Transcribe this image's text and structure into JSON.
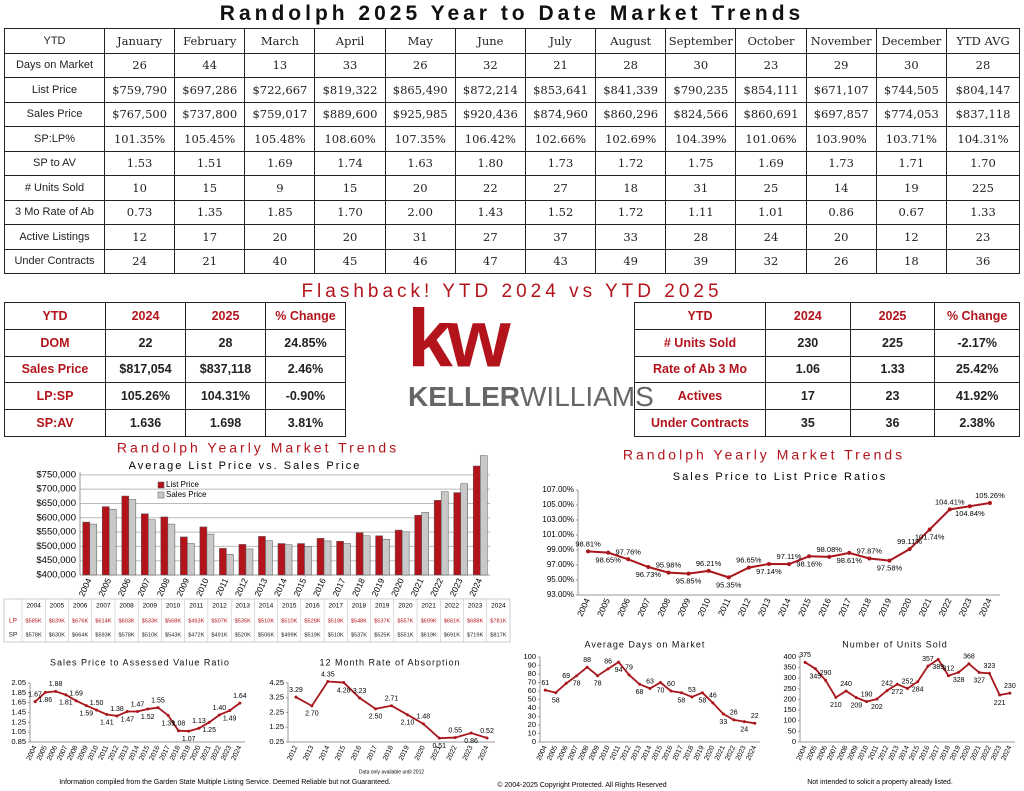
{
  "title": "Randolph 2025 Year to Date Market Trends",
  "table": {
    "header": [
      "YTD",
      "January",
      "February",
      "March",
      "April",
      "May",
      "June",
      "July",
      "August",
      "September",
      "October",
      "November",
      "December",
      "YTD AVG"
    ],
    "rows": [
      [
        "Days on Market",
        "26",
        "44",
        "13",
        "33",
        "26",
        "32",
        "21",
        "28",
        "30",
        "23",
        "29",
        "30",
        "28"
      ],
      [
        "List Price",
        "$759,790",
        "$697,286",
        "$722,667",
        "$819,322",
        "$865,490",
        "$872,214",
        "$853,641",
        "$841,339",
        "$790,235",
        "$854,111",
        "$671,107",
        "$744,505",
        "$804,147"
      ],
      [
        "Sales Price",
        "$767,500",
        "$737,800",
        "$759,017",
        "$889,600",
        "$925,985",
        "$920,436",
        "$874,960",
        "$860,296",
        "$824,566",
        "$860,691",
        "$697,857",
        "$774,053",
        "$837,118"
      ],
      [
        "SP:LP%",
        "101.35%",
        "105.45%",
        "105.48%",
        "108.60%",
        "107.35%",
        "106.42%",
        "102.66%",
        "102.69%",
        "104.39%",
        "101.06%",
        "103.90%",
        "103.71%",
        "104.31%"
      ],
      [
        "SP to AV",
        "1.53",
        "1.51",
        "1.69",
        "1.74",
        "1.63",
        "1.80",
        "1.73",
        "1.72",
        "1.75",
        "1.69",
        "1.73",
        "1.71",
        "1.70"
      ],
      [
        "# Units Sold",
        "10",
        "15",
        "9",
        "15",
        "20",
        "22",
        "27",
        "18",
        "31",
        "25",
        "14",
        "19",
        "225"
      ],
      [
        "3 Mo Rate of Ab",
        "0.73",
        "1.35",
        "1.85",
        "1.70",
        "2.00",
        "1.43",
        "1.52",
        "1.72",
        "1.11",
        "1.01",
        "0.86",
        "0.67",
        "1.33"
      ],
      [
        "Active Listings",
        "12",
        "17",
        "20",
        "20",
        "31",
        "27",
        "37",
        "33",
        "28",
        "24",
        "20",
        "12",
        "23"
      ],
      [
        "Under Contracts",
        "24",
        "21",
        "40",
        "45",
        "46",
        "47",
        "43",
        "49",
        "39",
        "32",
        "26",
        "18",
        "36"
      ]
    ]
  },
  "flashback": {
    "title": "Flashback!  YTD 2024 vs YTD 2025",
    "left": {
      "header": [
        "YTD",
        "2024",
        "2025",
        "% Change"
      ],
      "rows": [
        [
          "DOM",
          "22",
          "28",
          "24.85%"
        ],
        [
          "Sales Price",
          "$817,054",
          "$837,118",
          "2.46%"
        ],
        [
          "LP:SP",
          "105.26%",
          "104.31%",
          "-0.90%"
        ],
        [
          "SP:AV",
          "1.636",
          "1.698",
          "3.81%"
        ]
      ]
    },
    "right": {
      "header": [
        "YTD",
        "2024",
        "2025",
        "% Change"
      ],
      "rows": [
        [
          "# Units Sold",
          "230",
          "225",
          "-2.17%"
        ],
        [
          "Rate of Ab 3 Mo",
          "1.06",
          "1.33",
          "25.42%"
        ],
        [
          "Actives",
          "17",
          "23",
          "41.92%"
        ],
        [
          "Under Contracts",
          "35",
          "36",
          "2.38%"
        ]
      ]
    }
  },
  "logo": {
    "mark": "kw",
    "keller": "KELLER",
    "williams": "WILLIAMS"
  },
  "chart_data": [
    {
      "type": "bar",
      "title": "Randolph Yearly Market Trends",
      "subtitle": "Average List Price vs. Sales Price",
      "categories": [
        "2004",
        "2005",
        "2006",
        "2007",
        "2008",
        "2009",
        "2010",
        "2011",
        "2012",
        "2013",
        "2014",
        "2015",
        "2016",
        "2017",
        "2018",
        "2019",
        "2020",
        "2021",
        "2022",
        "2023",
        "2024"
      ],
      "series": [
        {
          "name": "List Price",
          "row_label": "LP",
          "color": "#b3141c",
          "values": [
            585000,
            639000,
            676000,
            614000,
            603000,
            533000,
            568000,
            493000,
            507000,
            535000,
            510000,
            510000,
            528000,
            518000,
            548000,
            537000,
            557000,
            609000,
            661000,
            688000,
            781000
          ],
          "value_labels": [
            "$585K",
            "$639K",
            "$676K",
            "$614K",
            "$603K",
            "$533K",
            "$568K",
            "$493K",
            "$507K",
            "$535K",
            "$510K",
            "$510K",
            "$528K",
            "$518K",
            "$548K",
            "$537K",
            "$557K",
            "$609K",
            "$661K",
            "$688K",
            "$781K"
          ]
        },
        {
          "name": "Sales Price",
          "row_label": "SP",
          "color": "#c8c8c8",
          "values": [
            578000,
            630000,
            664000,
            593000,
            578000,
            510000,
            543000,
            472000,
            491000,
            520000,
            506000,
            499000,
            519000,
            510000,
            537000,
            525000,
            551000,
            619000,
            691000,
            719000,
            817000
          ],
          "value_labels": [
            "$578K",
            "$630K",
            "$664K",
            "$593K",
            "$578K",
            "$510K",
            "$543K",
            "$472K",
            "$491K",
            "$520K",
            "$506K",
            "$499K",
            "$519K",
            "$510K",
            "$537K",
            "$525K",
            "$551K",
            "$619K",
            "$691K",
            "$719K",
            "$817K"
          ]
        }
      ],
      "ylim": [
        400000,
        760000
      ],
      "yticks": [
        {
          "value": 400000,
          "label": "$400,000"
        },
        {
          "value": 450000,
          "label": "$450,000"
        },
        {
          "value": 500000,
          "label": "$500,000"
        },
        {
          "value": 550000,
          "label": "$550,000"
        },
        {
          "value": 600000,
          "label": "$600,000"
        },
        {
          "value": 650000,
          "label": "$650,000"
        },
        {
          "value": 700000,
          "label": "$700,000"
        },
        {
          "value": 750000,
          "label": "$750,000"
        }
      ],
      "grid": true,
      "legend": "top-left"
    },
    {
      "type": "line",
      "title": "Randolph Yearly Market Trends",
      "subtitle": "Sales Price to List Price Ratios",
      "color": "#a8161c",
      "categories": [
        "2004",
        "2005",
        "2006",
        "2007",
        "2008",
        "2009",
        "2010",
        "2011",
        "2012",
        "2013",
        "2014",
        "2015",
        "2016",
        "2017",
        "2018",
        "2019",
        "2020",
        "2021",
        "2022",
        "2023",
        "2024"
      ],
      "values": [
        98.81,
        98.65,
        97.76,
        96.73,
        95.98,
        95.85,
        96.21,
        95.35,
        96.65,
        97.14,
        97.11,
        98.16,
        98.08,
        98.61,
        97.87,
        97.58,
        99.11,
        101.74,
        104.41,
        104.84,
        105.26
      ],
      "value_labels": [
        "98.81%",
        "98.65%",
        "97.76%",
        "96.73%",
        "95.98%",
        "95.85%",
        "96.21%",
        "95.35%",
        "96.65%",
        "97.14%",
        "97.11%",
        "98.16%",
        "98.08%",
        "98.61%",
        "97.87%",
        "97.58%",
        "99.11%",
        "101.74%",
        "104.41%",
        "104.84%",
        "105.26%"
      ],
      "ylim": [
        93,
        107
      ],
      "yticks": [
        {
          "value": 93,
          "label": "93.00%"
        },
        {
          "value": 95,
          "label": "95.00%"
        },
        {
          "value": 97,
          "label": "97.00%"
        },
        {
          "value": 99,
          "label": "99.00%"
        },
        {
          "value": 101,
          "label": "101.00%"
        },
        {
          "value": 103,
          "label": "103.00%"
        },
        {
          "value": 105,
          "label": "105.00%"
        },
        {
          "value": 107,
          "label": "107.00%"
        }
      ],
      "grid": false
    },
    {
      "type": "line",
      "title": "Sales Price to Assessed Value Ratio",
      "color": "#a8161c",
      "categories": [
        "2004",
        "2005",
        "2006",
        "2007",
        "2008",
        "2009",
        "2010",
        "2011",
        "2012",
        "2013",
        "2014",
        "2015",
        "2016",
        "2017",
        "2018",
        "2019",
        "2020",
        "2021",
        "2022",
        "2023",
        "2024"
      ],
      "values": [
        1.67,
        1.86,
        1.88,
        1.81,
        1.69,
        1.59,
        1.5,
        1.41,
        1.38,
        1.47,
        1.47,
        1.52,
        1.55,
        1.39,
        1.08,
        1.07,
        1.13,
        1.25,
        1.4,
        1.49,
        1.64
      ],
      "value_labels": [
        "1.67",
        "1.86",
        "1.88",
        "1.81",
        "1.69",
        "1.59",
        "1.50",
        "1.41",
        "1.38",
        "1.47",
        "1.47",
        "1.52",
        "1.55",
        "1.39",
        "1.08",
        "1.07",
        "1.13",
        "1.25",
        "1.40",
        "1.49",
        "1.64"
      ],
      "ylim": [
        0.85,
        2.05
      ],
      "yticks": [
        0.85,
        1.05,
        1.25,
        1.45,
        1.65,
        1.85,
        2.05
      ],
      "grid": false
    },
    {
      "type": "line",
      "title": "12 Month Rate of Absorption",
      "note": "Data only available until 2012",
      "color": "#a8161c",
      "categories": [
        "2012",
        "2013",
        "2014",
        "2015",
        "2016",
        "2017",
        "2018",
        "2019",
        "2020",
        "2021",
        "2022",
        "2023",
        "2024"
      ],
      "values": [
        3.29,
        2.7,
        4.35,
        4.28,
        3.23,
        2.5,
        2.71,
        2.1,
        1.48,
        0.51,
        0.55,
        0.86,
        0.52
      ],
      "value_labels": [
        "3.29",
        "2.70",
        "4.35",
        "4.28",
        "3.23",
        "2.50",
        "2.71",
        "2.10",
        "1.48",
        "0.51",
        "0.55",
        "0.86",
        "0.52"
      ],
      "ylim": [
        0.25,
        4.25
      ],
      "yticks": [
        0.25,
        1.25,
        2.25,
        3.25,
        4.25
      ],
      "grid": false
    },
    {
      "type": "line",
      "title": "Average Days on Market",
      "color": "#a8161c",
      "categories": [
        "2004",
        "2005",
        "2006",
        "2007",
        "2008",
        "2009",
        "2010",
        "2011",
        "2012",
        "2013",
        "2014",
        "2015",
        "2016",
        "2017",
        "2018",
        "2019",
        "2020",
        "2021",
        "2022",
        "2023",
        "2024"
      ],
      "values": [
        61,
        58,
        69,
        78,
        88,
        78,
        86,
        94,
        79,
        68,
        63,
        70,
        60,
        58,
        53,
        58,
        46,
        33,
        26,
        24,
        22
      ],
      "ylim": [
        0,
        100
      ],
      "yticks": [
        0,
        10,
        20,
        30,
        40,
        50,
        60,
        70,
        80,
        90,
        100
      ],
      "grid": false
    },
    {
      "type": "line",
      "title": "Number of Units Sold",
      "color": "#a8161c",
      "categories": [
        "2004",
        "2005",
        "2006",
        "2007",
        "2008",
        "2009",
        "2010",
        "2011",
        "2012",
        "2013",
        "2014",
        "2015",
        "2016",
        "2017",
        "2018",
        "2019",
        "2020",
        "2021",
        "2022",
        "2023",
        "2024"
      ],
      "values": [
        375,
        345,
        290,
        210,
        240,
        209,
        190,
        202,
        242,
        272,
        252,
        284,
        357,
        389,
        312,
        328,
        368,
        327,
        323,
        221,
        230
      ],
      "ylim": [
        0,
        400
      ],
      "yticks": [
        0,
        50,
        100,
        150,
        200,
        250,
        300,
        350,
        400
      ],
      "grid": false
    }
  ],
  "footer": {
    "left": "Information compiled from the Garden State Multiple Listing Service.  Deemed Reliable but not Guaranteed.",
    "center": "© 2004-2025 Copyright Protected.  All Rights Reserved",
    "right": "Not intended to solicit a property already listed."
  }
}
